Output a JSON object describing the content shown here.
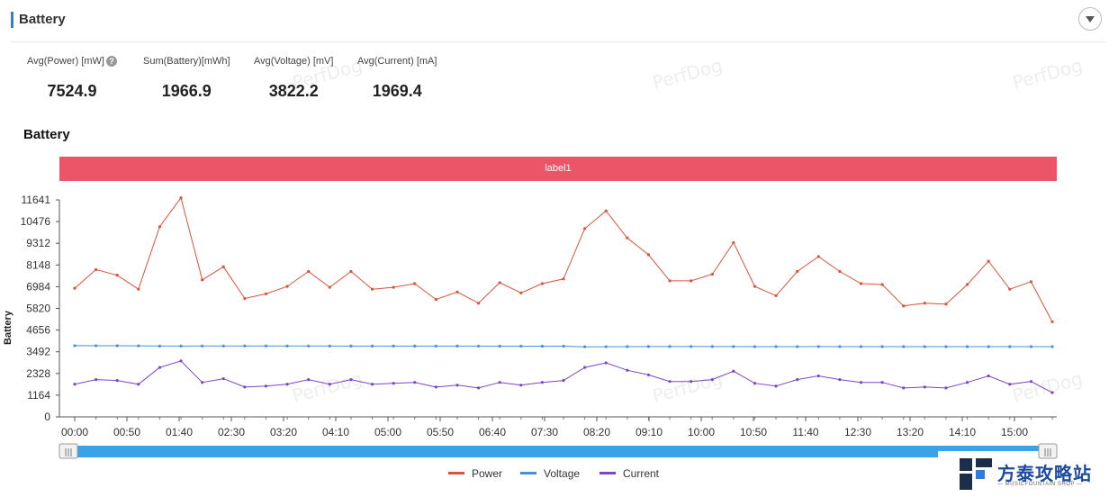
{
  "section": {
    "title": "Battery"
  },
  "stats": [
    {
      "label": "Avg(Power) [mW]",
      "value": "7524.9",
      "help": true
    },
    {
      "label": "Sum(Battery)[mWh]",
      "value": "1966.9"
    },
    {
      "label": "Avg(Voltage) [mV]",
      "value": "3822.2"
    },
    {
      "label": "Avg(Current) [mA]",
      "value": "1969.4"
    }
  ],
  "watermark": "PerfDog",
  "brand": {
    "name": "方泰攻略站",
    "sub": "— MUSICFOUNTAIN SHOP —"
  },
  "chart_data": {
    "type": "line",
    "title": "Battery",
    "label_bar": "label1",
    "ylabel": "Battery",
    "ylim": [
      0,
      11641
    ],
    "yticks": [
      "0",
      "1164",
      "2328",
      "3492",
      "4656",
      "5820",
      "6984",
      "8148",
      "9312",
      "10476",
      "11641"
    ],
    "xticks": [
      "00:00",
      "00:50",
      "01:40",
      "02:30",
      "03:20",
      "04:10",
      "05:00",
      "05:50",
      "06:40",
      "07:30",
      "08:20",
      "09:10",
      "10:00",
      "10:50",
      "11:40",
      "12:30",
      "13:20",
      "14:10",
      "15:00"
    ],
    "x_step_seconds": 20,
    "legend": [
      "Power",
      "Voltage",
      "Current"
    ],
    "legend_position": "bottom",
    "colors": {
      "Power": "#d9533a",
      "Voltage": "#4a90d9",
      "Current": "#7b48c4"
    },
    "series": [
      {
        "name": "Power",
        "values": [
          6900,
          7900,
          7600,
          6850,
          10200,
          11750,
          7350,
          8050,
          6350,
          6600,
          7000,
          7800,
          6950,
          7800,
          6850,
          6950,
          7150,
          6300,
          6700,
          6100,
          7200,
          6650,
          7150,
          7400,
          10100,
          11050,
          9600,
          8700,
          7300,
          7300,
          7650,
          9350,
          7000,
          6500,
          7800,
          8600,
          7800,
          7150,
          7100,
          5950,
          6100,
          6050,
          7100,
          8350,
          6850,
          7250,
          5100
        ]
      },
      {
        "name": "Voltage",
        "values": [
          3820,
          3818,
          3816,
          3812,
          3800,
          3798,
          3800,
          3802,
          3805,
          3803,
          3800,
          3801,
          3800,
          3798,
          3797,
          3799,
          3798,
          3796,
          3797,
          3795,
          3794,
          3794,
          3793,
          3792,
          3760,
          3765,
          3770,
          3772,
          3774,
          3775,
          3774,
          3772,
          3770,
          3770,
          3770,
          3771,
          3770,
          3770,
          3770,
          3770,
          3770,
          3769,
          3769,
          3768,
          3768,
          3768,
          3768
        ]
      },
      {
        "name": "Current",
        "values": [
          1750,
          2000,
          1950,
          1750,
          2650,
          3000,
          1850,
          2050,
          1600,
          1650,
          1750,
          2000,
          1750,
          2000,
          1750,
          1800,
          1850,
          1600,
          1700,
          1550,
          1850,
          1700,
          1850,
          1950,
          2650,
          2900,
          2500,
          2250,
          1900,
          1900,
          2000,
          2450,
          1800,
          1650,
          2000,
          2200,
          2000,
          1850,
          1850,
          1550,
          1600,
          1550,
          1850,
          2200,
          1750,
          1900,
          1300
        ]
      }
    ]
  }
}
